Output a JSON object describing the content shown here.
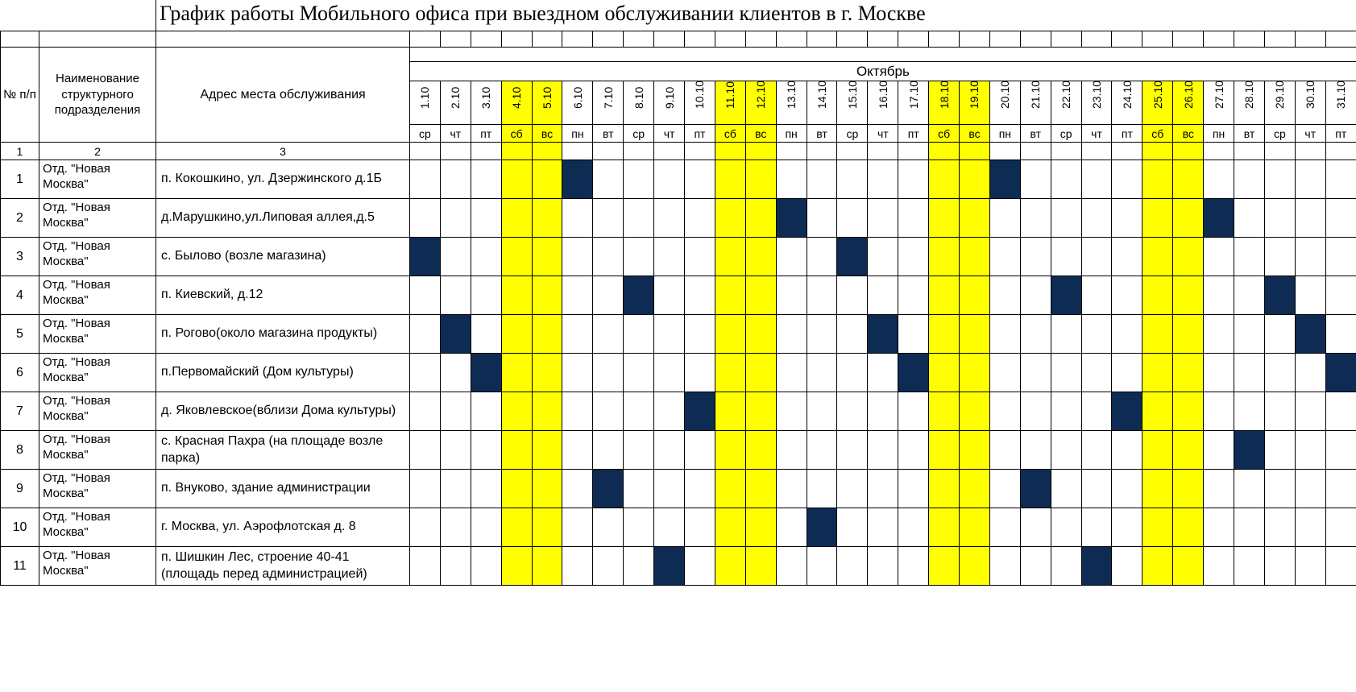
{
  "title": "График работы Мобильного офиса при выездном обслуживании клиентов в г. Москве",
  "header": {
    "idx_label": "№ п/п",
    "dept_label": "Наименование структурного подразделения",
    "addr_label": "Адрес места обслуживания",
    "month_label": "Октябрь",
    "colnum_idx": "1",
    "colnum_dept": "2",
    "colnum_addr": "3"
  },
  "colors": {
    "weekend_bg": "#ffff00",
    "visit_bg": "#0d2b53",
    "border": "#000000",
    "background": "#ffffff",
    "text": "#000000"
  },
  "days": [
    {
      "date": "1.10",
      "dow": "ср",
      "weekend": false
    },
    {
      "date": "2.10",
      "dow": "чт",
      "weekend": false
    },
    {
      "date": "3.10",
      "dow": "пт",
      "weekend": false
    },
    {
      "date": "4.10",
      "dow": "сб",
      "weekend": true
    },
    {
      "date": "5.10",
      "dow": "вс",
      "weekend": true
    },
    {
      "date": "6.10",
      "dow": "пн",
      "weekend": false
    },
    {
      "date": "7.10",
      "dow": "вт",
      "weekend": false
    },
    {
      "date": "8.10",
      "dow": "ср",
      "weekend": false
    },
    {
      "date": "9.10",
      "dow": "чт",
      "weekend": false
    },
    {
      "date": "10.10",
      "dow": "пт",
      "weekend": false
    },
    {
      "date": "11.10",
      "dow": "сб",
      "weekend": true
    },
    {
      "date": "12.10",
      "dow": "вс",
      "weekend": true
    },
    {
      "date": "13.10",
      "dow": "пн",
      "weekend": false
    },
    {
      "date": "14.10",
      "dow": "вт",
      "weekend": false
    },
    {
      "date": "15.10",
      "dow": "ср",
      "weekend": false
    },
    {
      "date": "16.10",
      "dow": "чт",
      "weekend": false
    },
    {
      "date": "17.10",
      "dow": "пт",
      "weekend": false
    },
    {
      "date": "18.10",
      "dow": "сб",
      "weekend": true
    },
    {
      "date": "19.10",
      "dow": "вс",
      "weekend": true
    },
    {
      "date": "20.10",
      "dow": "пн",
      "weekend": false
    },
    {
      "date": "21.10",
      "dow": "вт",
      "weekend": false
    },
    {
      "date": "22.10",
      "dow": "ср",
      "weekend": false
    },
    {
      "date": "23.10",
      "dow": "чт",
      "weekend": false
    },
    {
      "date": "24.10",
      "dow": "пт",
      "weekend": false
    },
    {
      "date": "25.10",
      "dow": "сб",
      "weekend": true
    },
    {
      "date": "26.10",
      "dow": "вс",
      "weekend": true
    },
    {
      "date": "27.10",
      "dow": "пн",
      "weekend": false
    },
    {
      "date": "28.10",
      "dow": "вт",
      "weekend": false
    },
    {
      "date": "29.10",
      "dow": "ср",
      "weekend": false
    },
    {
      "date": "30.10",
      "dow": "чт",
      "weekend": false
    },
    {
      "date": "31.10",
      "dow": "пт",
      "weekend": false
    }
  ],
  "rows": [
    {
      "n": "1",
      "dept": "Отд. \"Новая Москва\"",
      "addr": "п. Кокошкино, ул. Дзержинского д.1Б",
      "visits": [
        6,
        20
      ]
    },
    {
      "n": "2",
      "dept": "Отд. \"Новая Москва\"",
      "addr": " д.Марушкино,ул.Липовая аллея,д.5",
      "visits": [
        13,
        27
      ]
    },
    {
      "n": "3",
      "dept": "Отд. \"Новая Москва\"",
      "addr": "с. Былово (возле магазина)",
      "visits": [
        1,
        15
      ]
    },
    {
      "n": "4",
      "dept": "Отд. \"Новая Москва\"",
      "addr": "п. Киевский, д.12",
      "visits": [
        8,
        22,
        29
      ]
    },
    {
      "n": "5",
      "dept": "Отд. \"Новая Москва\"",
      "addr": "п. Рогово(около магазина продукты)",
      "visits": [
        2,
        16,
        30
      ]
    },
    {
      "n": "6",
      "dept": "Отд. \"Новая Москва\"",
      "addr": "п.Первомайский (Дом культуры)",
      "visits": [
        3,
        17,
        31
      ]
    },
    {
      "n": "7",
      "dept": "Отд. \"Новая Москва\"",
      "addr": "д. Яковлевское(вблизи Дома культуры)",
      "visits": [
        10,
        24
      ]
    },
    {
      "n": "8",
      "dept": "Отд. \"Новая Москва\"",
      "addr": "с. Красная Пахра (на площаде возле парка)",
      "visits": [
        28
      ]
    },
    {
      "n": "9",
      "dept": "Отд. \"Новая Москва\"",
      "addr": "п. Внуково, здание администрации",
      "visits": [
        7,
        21
      ]
    },
    {
      "n": "10",
      "dept": "Отд. \"Новая Москва\"",
      "addr": "г. Москва, ул. Аэрофлотская д. 8",
      "visits": [
        14
      ]
    },
    {
      "n": "11",
      "dept": "Отд. \"Новая Москва\"",
      "addr": "п. Шишкин Лес, строение 40-41 (площадь перед администрацией)",
      "visits": [
        9,
        23
      ]
    }
  ]
}
